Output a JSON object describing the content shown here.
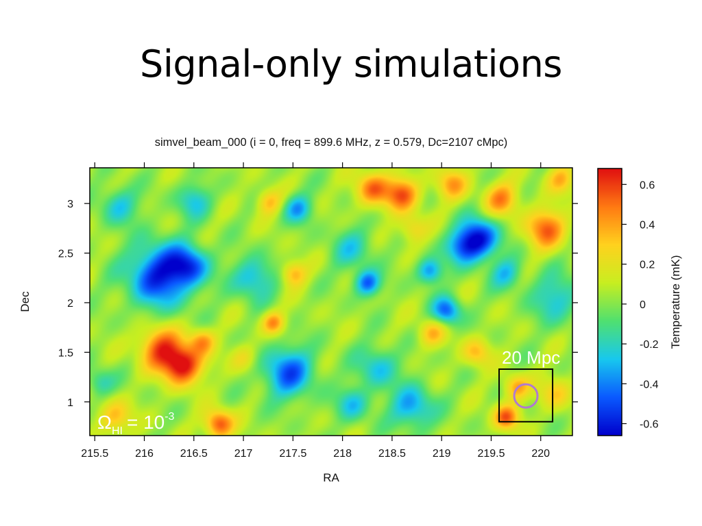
{
  "slide": {
    "title": "Signal-only simulations"
  },
  "chart_data": {
    "type": "heatmap",
    "title": "simvel_beam_000 (i = 0, freq = 899.6 MHz, z = 0.579, Dc=2107 cMpc)",
    "xlabel": "RA",
    "ylabel": "Dec",
    "xlim": [
      215.45,
      220.32
    ],
    "ylim": [
      0.66,
      3.36
    ],
    "x_ticks": [
      215.5,
      216,
      216.5,
      217,
      217.5,
      218,
      218.5,
      219,
      219.5,
      220
    ],
    "x_tick_labels": [
      "215.5",
      "216",
      "216.5",
      "217",
      "217.5",
      "218",
      "218.5",
      "219",
      "219.5",
      "220"
    ],
    "y_ticks": [
      1,
      1.5,
      2,
      2.5,
      3
    ],
    "y_tick_labels": [
      "1",
      "1.5",
      "2",
      "2.5",
      "3"
    ],
    "colorbar": {
      "label": "Temperature (mK)",
      "range": [
        -0.66,
        0.68
      ],
      "ticks": [
        -0.6,
        -0.4,
        -0.2,
        0,
        0.2,
        0.4,
        0.6
      ],
      "tick_labels": [
        "-0.6",
        "-0.4",
        "-0.2",
        "0",
        "0.2",
        "0.4",
        "0.6"
      ],
      "colormap": [
        "#0000cc",
        "#0a5aff",
        "#18c8ee",
        "#50e070",
        "#c8ee20",
        "#ffd21e",
        "#ff7a12",
        "#e01010"
      ]
    },
    "features": [
      {
        "ra": 216.15,
        "dec": 2.28,
        "t": -0.62,
        "r": 0.22
      },
      {
        "ra": 216.45,
        "dec": 2.38,
        "t": -0.45,
        "r": 0.14
      },
      {
        "ra": 216.38,
        "dec": 1.38,
        "t": 0.68,
        "r": 0.14
      },
      {
        "ra": 216.15,
        "dec": 1.55,
        "t": 0.48,
        "r": 0.15
      },
      {
        "ra": 216.58,
        "dec": 1.62,
        "t": 0.35,
        "r": 0.09
      },
      {
        "ra": 216.75,
        "dec": 0.78,
        "t": 0.55,
        "r": 0.1
      },
      {
        "ra": 215.7,
        "dec": 0.85,
        "t": 0.3,
        "r": 0.12
      },
      {
        "ra": 219.37,
        "dec": 2.65,
        "t": -0.65,
        "r": 0.14
      },
      {
        "ra": 219.2,
        "dec": 2.55,
        "t": -0.35,
        "r": 0.12
      },
      {
        "ra": 218.25,
        "dec": 2.2,
        "t": -0.5,
        "r": 0.09
      },
      {
        "ra": 219.05,
        "dec": 1.92,
        "t": -0.5,
        "r": 0.1
      },
      {
        "ra": 218.88,
        "dec": 2.32,
        "t": -0.42,
        "r": 0.09
      },
      {
        "ra": 217.45,
        "dec": 1.3,
        "t": -0.5,
        "r": 0.18
      },
      {
        "ra": 218.35,
        "dec": 1.35,
        "t": -0.3,
        "r": 0.15
      },
      {
        "ra": 218.7,
        "dec": 0.95,
        "t": -0.4,
        "r": 0.15
      },
      {
        "ra": 218.1,
        "dec": 0.98,
        "t": -0.3,
        "r": 0.12
      },
      {
        "ra": 217.1,
        "dec": 2.25,
        "t": -0.35,
        "r": 0.15
      },
      {
        "ra": 217.55,
        "dec": 2.95,
        "t": -0.38,
        "r": 0.1
      },
      {
        "ra": 215.75,
        "dec": 2.98,
        "t": -0.3,
        "r": 0.13
      },
      {
        "ra": 216.5,
        "dec": 3.03,
        "t": -0.3,
        "r": 0.12
      },
      {
        "ra": 220.15,
        "dec": 2.05,
        "t": -0.3,
        "r": 0.17
      },
      {
        "ra": 219.65,
        "dec": 2.3,
        "t": -0.3,
        "r": 0.11
      },
      {
        "ra": 215.55,
        "dec": 1.2,
        "t": -0.25,
        "r": 0.1
      },
      {
        "ra": 218.1,
        "dec": 2.55,
        "t": -0.25,
        "r": 0.15
      },
      {
        "ra": 217.25,
        "dec": 3.02,
        "t": 0.3,
        "r": 0.09
      },
      {
        "ra": 218.3,
        "dec": 3.15,
        "t": 0.45,
        "r": 0.12
      },
      {
        "ra": 218.6,
        "dec": 3.1,
        "t": 0.5,
        "r": 0.12
      },
      {
        "ra": 219.1,
        "dec": 3.2,
        "t": 0.35,
        "r": 0.11
      },
      {
        "ra": 219.6,
        "dec": 3.05,
        "t": 0.4,
        "r": 0.12
      },
      {
        "ra": 220.05,
        "dec": 2.75,
        "t": 0.48,
        "r": 0.14
      },
      {
        "ra": 220.2,
        "dec": 3.25,
        "t": 0.3,
        "r": 0.1
      },
      {
        "ra": 217.5,
        "dec": 2.3,
        "t": 0.35,
        "r": 0.09
      },
      {
        "ra": 217.3,
        "dec": 1.8,
        "t": 0.4,
        "r": 0.08
      },
      {
        "ra": 217.0,
        "dec": 1.45,
        "t": 0.2,
        "r": 0.1
      },
      {
        "ra": 218.9,
        "dec": 1.7,
        "t": 0.3,
        "r": 0.1
      },
      {
        "ra": 219.35,
        "dec": 1.5,
        "t": 0.3,
        "r": 0.1
      },
      {
        "ra": 219.65,
        "dec": 0.85,
        "t": 0.5,
        "r": 0.09
      },
      {
        "ra": 219.75,
        "dec": 1.15,
        "t": 0.35,
        "r": 0.09
      },
      {
        "ra": 218.7,
        "dec": 2.75,
        "t": 0.25,
        "r": 0.1
      },
      {
        "ra": 220.15,
        "dec": 1.1,
        "t": 0.25,
        "r": 0.12
      }
    ],
    "annotations": {
      "box_label": "20 Mpc",
      "box_ra": [
        219.58,
        220.12
      ],
      "box_dec": [
        0.8,
        1.33
      ],
      "circle_ra": 219.85,
      "circle_dec": 1.06,
      "circle_color": "#b07ad0",
      "omega_symbol": "Ω",
      "omega_subscript": "HI",
      "omega_equals": "= 10",
      "omega_exponent": "-3"
    }
  }
}
